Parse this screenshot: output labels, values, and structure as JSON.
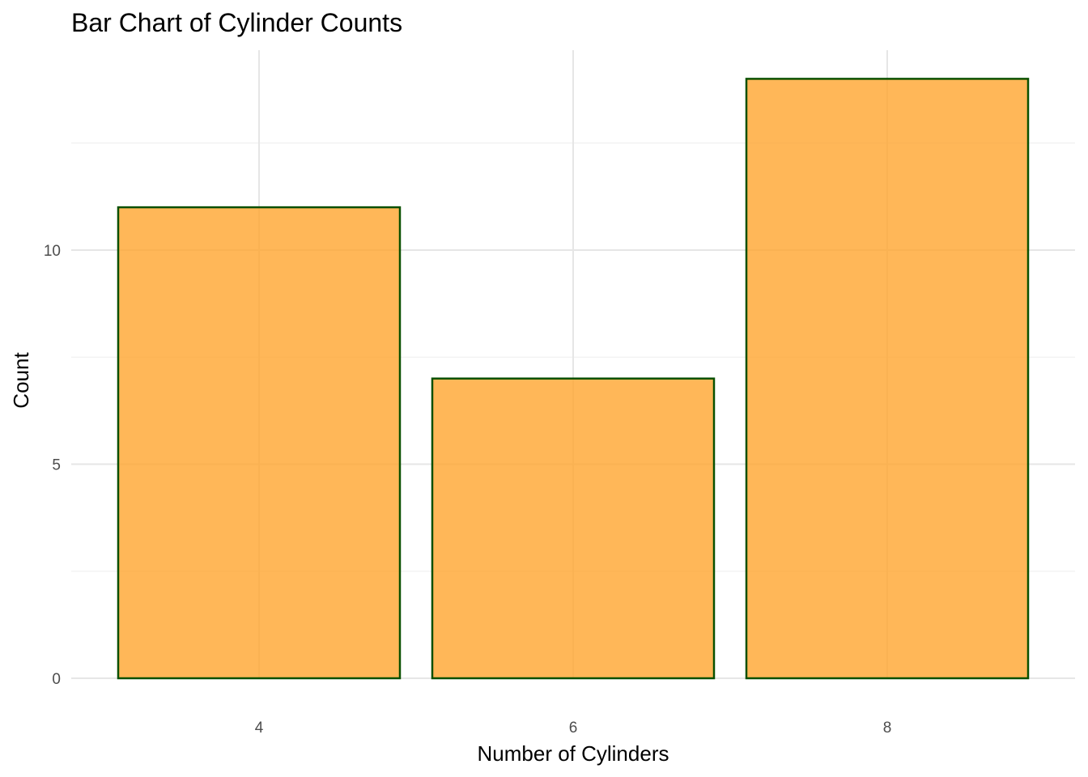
{
  "chart_data": {
    "type": "bar",
    "title": "Bar Chart of Cylinder Counts",
    "xlabel": "Number of Cylinders",
    "ylabel": "Count",
    "categories": [
      "4",
      "6",
      "8"
    ],
    "values": [
      11,
      7,
      14
    ],
    "ylim": [
      0,
      14.7
    ],
    "y_ticks": [
      0,
      5,
      10
    ],
    "y_minor_ticks": [
      2.5,
      7.5,
      12.5
    ],
    "grid": true,
    "legend": "none",
    "colors": {
      "bar_fill": "#ffa52e",
      "bar_fill_opacity": 0.8,
      "bar_stroke": "#0a5000",
      "grid_major": "#e6e6e6",
      "grid_minor": "#f0f0f0"
    }
  }
}
